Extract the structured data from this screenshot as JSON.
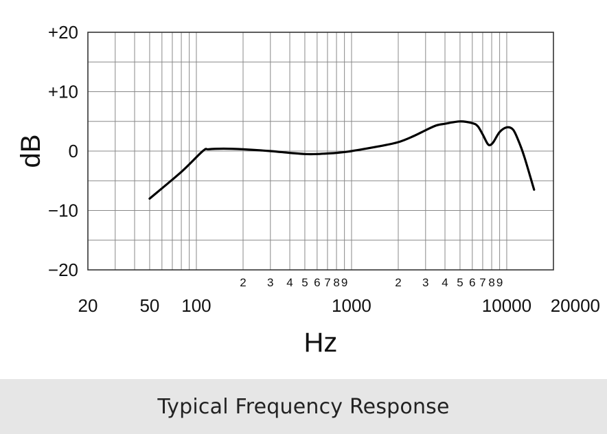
{
  "chart_data": {
    "type": "line",
    "title": "",
    "xlabel": "Hz",
    "ylabel": "dB",
    "xscale": "log",
    "xlim": [
      20,
      20000
    ],
    "ylim": [
      -20,
      20
    ],
    "grid": true,
    "ytick_labels": [
      {
        "value": 20,
        "label": "+20"
      },
      {
        "value": 10,
        "label": "+10"
      },
      {
        "value": 0,
        "label": "0"
      },
      {
        "value": -10,
        "label": "−10"
      },
      {
        "value": -20,
        "label": "−20"
      }
    ],
    "xtick_labels": [
      {
        "value": 20,
        "label": "20"
      },
      {
        "value": 50,
        "label": "50"
      },
      {
        "value": 100,
        "label": "100"
      },
      {
        "value": 1000,
        "label": "1000"
      },
      {
        "value": 10000,
        "label": "10000"
      },
      {
        "value": 20000,
        "label": "20000"
      }
    ],
    "minor_tick_labels": [
      {
        "value": 200,
        "label": "2"
      },
      {
        "value": 300,
        "label": "3"
      },
      {
        "value": 400,
        "label": "4"
      },
      {
        "value": 500,
        "label": "5"
      },
      {
        "value": 600,
        "label": "6"
      },
      {
        "value": 700,
        "label": "7"
      },
      {
        "value": 800,
        "label": "8"
      },
      {
        "value": 900,
        "label": "9"
      },
      {
        "value": 2000,
        "label": "2"
      },
      {
        "value": 3000,
        "label": "3"
      },
      {
        "value": 4000,
        "label": "4"
      },
      {
        "value": 5000,
        "label": "5"
      },
      {
        "value": 6000,
        "label": "6"
      },
      {
        "value": 7000,
        "label": "7"
      },
      {
        "value": 8000,
        "label": "8"
      },
      {
        "value": 9000,
        "label": "9"
      }
    ],
    "series": [
      {
        "x": [
          50,
          80,
          110,
          120,
          150,
          200,
          300,
          400,
          500,
          600,
          700,
          800,
          1000,
          1500,
          2000,
          2500,
          3000,
          3500,
          4000,
          5000,
          6000,
          6500,
          7000,
          7500,
          7800,
          8200,
          9000,
          10000,
          11000,
          12000,
          13000,
          15000
        ],
        "y": [
          -8,
          -3.5,
          0,
          0.3,
          0.4,
          0.3,
          0,
          -0.3,
          -0.5,
          -0.5,
          -0.4,
          -0.3,
          0,
          0.8,
          1.5,
          2.5,
          3.5,
          4.3,
          4.6,
          5.0,
          4.7,
          4.2,
          2.8,
          1.3,
          1.0,
          1.5,
          3.2,
          4.0,
          3.6,
          1.5,
          -1.0,
          -6.5
        ]
      }
    ]
  },
  "caption": "Typical Frequency Response"
}
